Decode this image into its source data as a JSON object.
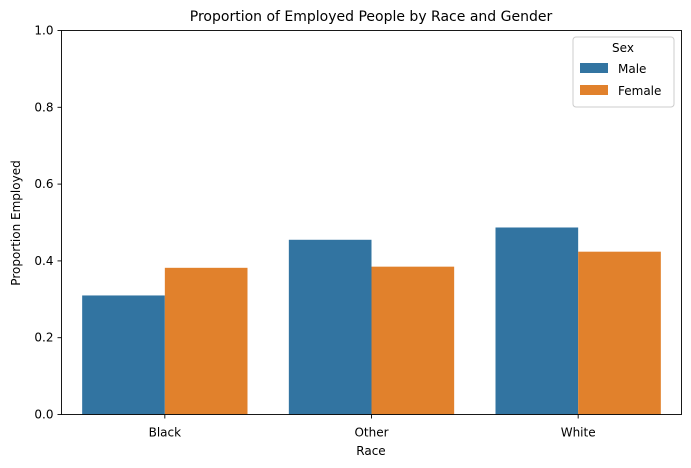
{
  "chart_data": {
    "type": "bar",
    "title": "Proportion of Employed People by Race and Gender",
    "xlabel": "Race",
    "ylabel": "Proportion Employed",
    "categories": [
      "Black",
      "Other",
      "White"
    ],
    "series": [
      {
        "name": "Male",
        "color": "#3274a1",
        "values": [
          0.31,
          0.455,
          0.487
        ]
      },
      {
        "name": "Female",
        "color": "#e1812c",
        "values": [
          0.382,
          0.385,
          0.424
        ]
      }
    ],
    "ylim": [
      0,
      1.0
    ],
    "yticks": [
      "0.0",
      "0.2",
      "0.4",
      "0.6",
      "0.8",
      "1.0"
    ],
    "grid": false,
    "legend": {
      "title": "Sex",
      "position": "top-right"
    }
  }
}
